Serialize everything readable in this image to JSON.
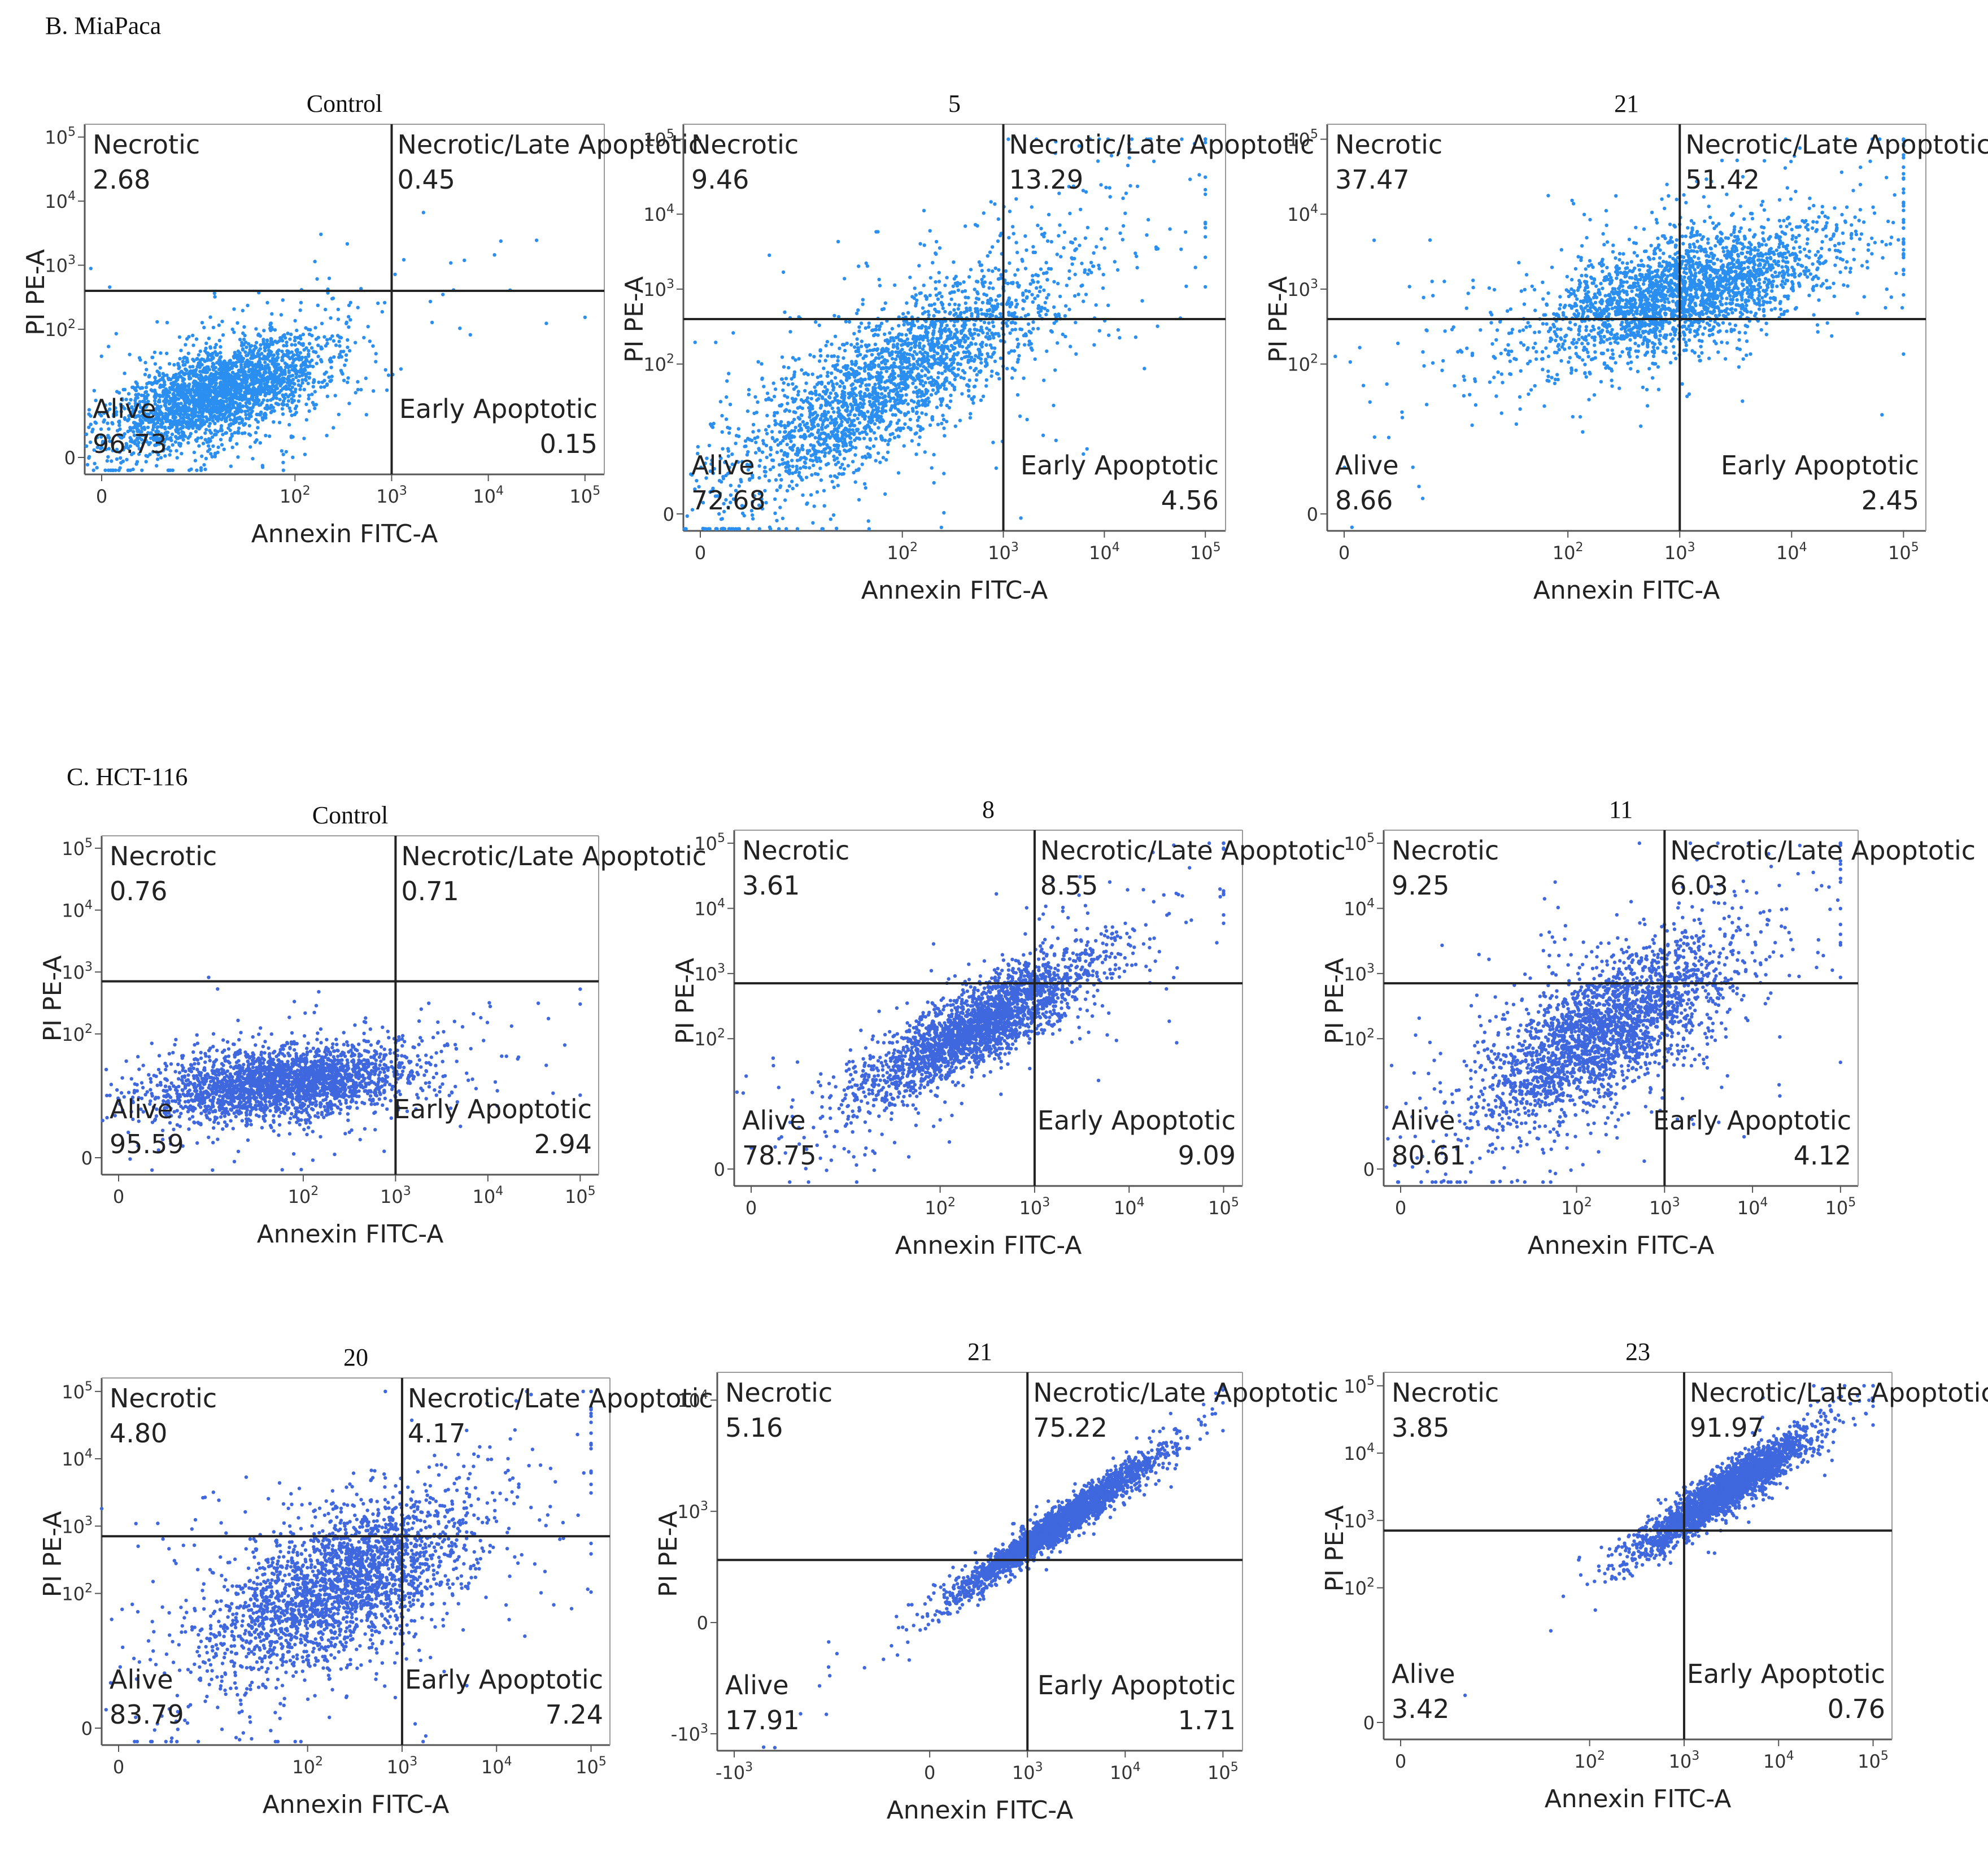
{
  "sections": [
    {
      "id": "miapaca",
      "label": "B. MiaPaca"
    },
    {
      "id": "hct116",
      "label": "C. HCT-116"
    }
  ],
  "colors": {
    "miapaca_dots": "#2a8ff0",
    "hct116_dots": "#3f67de",
    "axis": "#555555",
    "gate": "#222222"
  },
  "chart_data": [
    {
      "type": "scatter",
      "section": "miapaca",
      "title": "Control",
      "xlabel": "Annexin FITC-A",
      "ylabel": "PI PE-A",
      "xticks": [
        "0",
        "10^2",
        "10^3",
        "10^4",
        "10^5"
      ],
      "yticks": [
        "0",
        "10^2",
        "10^3",
        "10^4",
        "10^5"
      ],
      "gate": {
        "x": 3.0,
        "y": 2.6
      },
      "quadrants": {
        "necrotic": {
          "name": "Necrotic",
          "value": "2.68"
        },
        "late": {
          "name": "Necrotic/Late Apoptotic",
          "value": "0.45"
        },
        "alive": {
          "name": "Alive",
          "value": "96.73"
        },
        "early": {
          "name": "Early Apoptotic",
          "value": "0.15"
        }
      },
      "cluster": {
        "center": [
          1.2,
          1.0
        ],
        "spread": [
          0.55,
          0.45
        ],
        "corr": 0.6,
        "tail": 0.1
      }
    },
    {
      "type": "scatter",
      "section": "miapaca",
      "title": "5",
      "xlabel": "Annexin FITC-A",
      "ylabel": "PI PE-A",
      "xticks": [
        "0",
        "10^2",
        "10^3",
        "10^4",
        "10^5"
      ],
      "yticks": [
        "0",
        "10^2",
        "10^3",
        "10^4",
        "10^5"
      ],
      "gate": {
        "x": 3.0,
        "y": 2.6
      },
      "quadrants": {
        "necrotic": {
          "name": "Necrotic",
          "value": "9.46"
        },
        "late": {
          "name": "Necrotic/Late Apoptotic",
          "value": "13.29"
        },
        "alive": {
          "name": "Alive",
          "value": "72.68"
        },
        "early": {
          "name": "Early Apoptotic",
          "value": "4.56"
        }
      },
      "cluster": {
        "center": [
          1.9,
          1.8
        ],
        "spread": [
          0.8,
          0.75
        ],
        "corr": 0.8,
        "tail": 0.2
      }
    },
    {
      "type": "scatter",
      "section": "miapaca",
      "title": "21",
      "xlabel": "Annexin FITC-A",
      "ylabel": "PI PE-A",
      "xticks": [
        "0",
        "10^2",
        "10^3",
        "10^4",
        "10^5"
      ],
      "yticks": [
        "0",
        "10^2",
        "10^3",
        "10^4",
        "10^5"
      ],
      "gate": {
        "x": 3.0,
        "y": 2.6
      },
      "quadrants": {
        "necrotic": {
          "name": "Necrotic",
          "value": "37.47"
        },
        "late": {
          "name": "Necrotic/Late Apoptotic",
          "value": "51.42"
        },
        "alive": {
          "name": "Alive",
          "value": "8.66"
        },
        "early": {
          "name": "Early Apoptotic",
          "value": "2.45"
        }
      },
      "cluster": {
        "center": [
          3.0,
          2.95
        ],
        "spread": [
          0.65,
          0.45
        ],
        "corr": 0.6,
        "tail": 0.15
      }
    },
    {
      "type": "scatter",
      "section": "hct116",
      "title": "Control",
      "xlabel": "Annexin FITC-A",
      "ylabel": "PI PE-A",
      "xticks": [
        "0",
        "10^2",
        "10^3",
        "10^4",
        "10^5"
      ],
      "yticks": [
        "0",
        "10^2",
        "10^3",
        "10^4",
        "10^5"
      ],
      "gate": {
        "x": 3.0,
        "y": 2.85
      },
      "quadrants": {
        "necrotic": {
          "name": "Necrotic",
          "value": "0.76"
        },
        "late": {
          "name": "Necrotic/Late Apoptotic",
          "value": "0.71"
        },
        "alive": {
          "name": "Alive",
          "value": "95.59"
        },
        "early": {
          "name": "Early Apoptotic",
          "value": "2.94"
        }
      },
      "cluster": {
        "center": [
          1.8,
          1.2
        ],
        "spread": [
          0.7,
          0.3
        ],
        "corr": 0.3,
        "tail": 0.1
      }
    },
    {
      "type": "scatter",
      "section": "hct116",
      "title": "8",
      "xlabel": "Annexin FITC-A",
      "ylabel": "PI PE-A",
      "xticks": [
        "0",
        "10^2",
        "10^3",
        "10^4",
        "10^5"
      ],
      "yticks": [
        "0",
        "10^2",
        "10^3",
        "10^4",
        "10^5"
      ],
      "gate": {
        "x": 3.0,
        "y": 2.85
      },
      "quadrants": {
        "necrotic": {
          "name": "Necrotic",
          "value": "3.61"
        },
        "late": {
          "name": "Necrotic/Late Apoptotic",
          "value": "8.55"
        },
        "alive": {
          "name": "Alive",
          "value": "78.75"
        },
        "early": {
          "name": "Early Apoptotic",
          "value": "9.09"
        }
      },
      "cluster": {
        "center": [
          2.4,
          2.2
        ],
        "spread": [
          0.6,
          0.55
        ],
        "corr": 0.85,
        "tail": 0.15
      }
    },
    {
      "type": "scatter",
      "section": "hct116",
      "title": "11",
      "xlabel": "Annexin FITC-A",
      "ylabel": "PI PE-A",
      "xticks": [
        "0",
        "10^2",
        "10^3",
        "10^4",
        "10^5"
      ],
      "yticks": [
        "0",
        "10^2",
        "10^3",
        "10^4",
        "10^5"
      ],
      "gate": {
        "x": 3.0,
        "y": 2.85
      },
      "quadrants": {
        "necrotic": {
          "name": "Necrotic",
          "value": "9.25"
        },
        "late": {
          "name": "Necrotic/Late Apoptotic",
          "value": "6.03"
        },
        "alive": {
          "name": "Alive",
          "value": "80.61"
        },
        "early": {
          "name": "Early Apoptotic",
          "value": "4.12"
        }
      },
      "cluster": {
        "center": [
          2.3,
          2.1
        ],
        "spread": [
          0.7,
          0.7
        ],
        "corr": 0.7,
        "tail": 0.15
      }
    },
    {
      "type": "scatter",
      "section": "hct116",
      "title": "20",
      "xlabel": "Annexin FITC-A",
      "ylabel": "PI PE-A",
      "xticks": [
        "0",
        "10^2",
        "10^3",
        "10^4",
        "10^5"
      ],
      "yticks": [
        "0",
        "10^2",
        "10^3",
        "10^4",
        "10^5"
      ],
      "gate": {
        "x": 3.0,
        "y": 2.85
      },
      "quadrants": {
        "necrotic": {
          "name": "Necrotic",
          "value": "4.80"
        },
        "late": {
          "name": "Necrotic/Late Apoptotic",
          "value": "4.17"
        },
        "alive": {
          "name": "Alive",
          "value": "83.79"
        },
        "early": {
          "name": "Early Apoptotic",
          "value": "7.24"
        }
      },
      "cluster": {
        "center": [
          2.3,
          2.1
        ],
        "spread": [
          0.7,
          0.65
        ],
        "corr": 0.6,
        "tail": 0.15
      }
    },
    {
      "type": "scatter",
      "section": "hct116",
      "title": "21",
      "xlabel": "Annexin FITC-A",
      "ylabel": "PI PE-A",
      "xticks": [
        "-10^3",
        "0",
        "10^3",
        "10^4",
        "10^5"
      ],
      "yticks": [
        "-10^3",
        "0",
        "10^3",
        "10^4"
      ],
      "gate": {
        "x": 3.0,
        "y": 2.5
      },
      "quadrants": {
        "necrotic": {
          "name": "Necrotic",
          "value": "5.16"
        },
        "late": {
          "name": "Necrotic/Late Apoptotic",
          "value": "75.22"
        },
        "alive": {
          "name": "Alive",
          "value": "17.91"
        },
        "early": {
          "name": "Early Apoptotic",
          "value": "1.71"
        }
      },
      "cluster": {
        "center": [
          3.3,
          3.0
        ],
        "spread": [
          0.5,
          0.5
        ],
        "corr": 0.97,
        "tail": 0.05
      }
    },
    {
      "type": "scatter",
      "section": "hct116",
      "title": "23",
      "xlabel": "Annexin FITC-A",
      "ylabel": "PI PE-A",
      "xticks": [
        "0",
        "10^2",
        "10^3",
        "10^4",
        "10^5"
      ],
      "yticks": [
        "0",
        "10^2",
        "10^3",
        "10^4",
        "10^5"
      ],
      "gate": {
        "x": 3.0,
        "y": 2.85
      },
      "quadrants": {
        "necrotic": {
          "name": "Necrotic",
          "value": "3.85"
        },
        "late": {
          "name": "Necrotic/Late Apoptotic",
          "value": "91.97"
        },
        "alive": {
          "name": "Alive",
          "value": "3.42"
        },
        "early": {
          "name": "Early Apoptotic",
          "value": "0.76"
        }
      },
      "cluster": {
        "center": [
          3.4,
          3.4
        ],
        "spread": [
          0.45,
          0.45
        ],
        "corr": 0.93,
        "tail": 0.05
      }
    }
  ]
}
